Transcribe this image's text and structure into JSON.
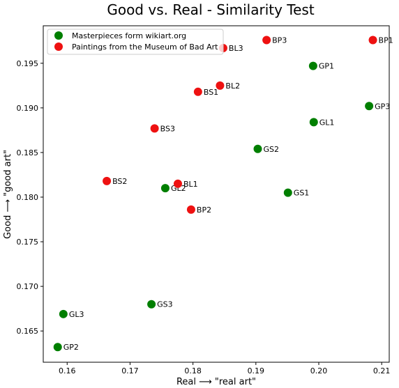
{
  "chart_data": {
    "type": "scatter",
    "title": "Good vs. Real - Similarity Test",
    "xlabel": "Real ⟶ \"real art\"",
    "ylabel": "Good ⟶ \"good art\"",
    "xlim": [
      0.1562,
      0.2112
    ],
    "ylim": [
      0.1615,
      0.1992
    ],
    "x_ticks": [
      "0.16",
      "0.17",
      "0.18",
      "0.19",
      "0.20",
      "0.21"
    ],
    "x_tick_values": [
      0.16,
      0.17,
      0.18,
      0.19,
      0.2,
      0.21
    ],
    "y_ticks": [
      "0.165",
      "0.170",
      "0.175",
      "0.180",
      "0.185",
      "0.190",
      "0.195"
    ],
    "y_tick_values": [
      0.165,
      0.17,
      0.175,
      0.18,
      0.185,
      0.19,
      0.195
    ],
    "legend_position": "top-left",
    "grid": false,
    "series": [
      {
        "name": "Masterpieces form wikiart.org",
        "color": "#007f00",
        "points": [
          {
            "label": "GP1",
            "x": 0.1991,
            "y": 0.1947
          },
          {
            "label": "GP3",
            "x": 0.208,
            "y": 0.1902
          },
          {
            "label": "GL1",
            "x": 0.1992,
            "y": 0.1884
          },
          {
            "label": "GS2",
            "x": 0.1903,
            "y": 0.1854
          },
          {
            "label": "GS1",
            "x": 0.1951,
            "y": 0.1805
          },
          {
            "label": "GL2",
            "x": 0.1756,
            "y": 0.181
          },
          {
            "label": "GS3",
            "x": 0.1734,
            "y": 0.168
          },
          {
            "label": "GL3",
            "x": 0.1594,
            "y": 0.1669
          },
          {
            "label": "GP2",
            "x": 0.1585,
            "y": 0.1632
          }
        ]
      },
      {
        "name": "Paintings from the Museum of Bad Art",
        "color": "#ee1111",
        "points": [
          {
            "label": "BP1",
            "x": 0.2086,
            "y": 0.1976
          },
          {
            "label": "BP3",
            "x": 0.1917,
            "y": 0.1976
          },
          {
            "label": "BL3",
            "x": 0.1848,
            "y": 0.1967
          },
          {
            "label": "BL2",
            "x": 0.1843,
            "y": 0.1925
          },
          {
            "label": "BS1",
            "x": 0.1808,
            "y": 0.1918
          },
          {
            "label": "BS3",
            "x": 0.1739,
            "y": 0.1877
          },
          {
            "label": "BS2",
            "x": 0.1663,
            "y": 0.1818
          },
          {
            "label": "BL1",
            "x": 0.1776,
            "y": 0.1815
          },
          {
            "label": "BP2",
            "x": 0.1797,
            "y": 0.1786
          }
        ]
      }
    ]
  }
}
